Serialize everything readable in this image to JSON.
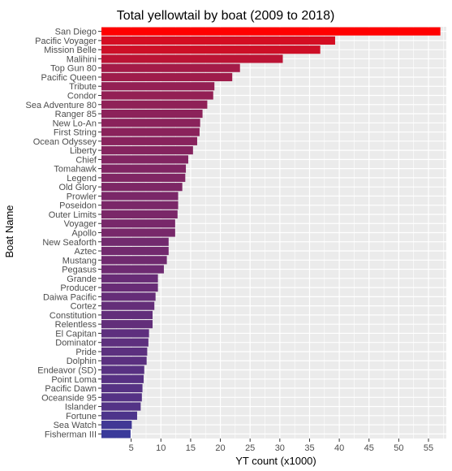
{
  "chart_data": {
    "type": "bar",
    "orientation": "horizontal",
    "title": "Total yellowtail by boat (2009 to 2018)",
    "xlabel": "YT count (x1000)",
    "ylabel": "Boat Name",
    "xlim": [
      0,
      58
    ],
    "xticks": [
      5,
      10,
      15,
      20,
      25,
      30,
      35,
      40,
      45,
      50,
      55
    ],
    "grid": true,
    "legend": "none",
    "colors": {
      "high": "#ff0000",
      "low": "#3a3a9a",
      "panel": "#ebebeb",
      "grid": "#ffffff"
    },
    "categories": [
      "San Diego",
      "Pacific Voyager",
      "Mission Belle",
      "Malihini",
      "Top Gun 80",
      "Pacific Queen",
      "Tribute",
      "Condor",
      "Sea Adventure 80",
      "Ranger 85",
      "New Lo-An",
      "First String",
      "Ocean Odyssey",
      "Liberty",
      "Chief",
      "Tomahawk",
      "Legend",
      "Old Glory",
      "Prowler",
      "Poseidon",
      "Outer Limits",
      "Voyager",
      "Apollo",
      "New Seaforth",
      "Aztec",
      "Mustang",
      "Pegasus",
      "Grande",
      "Producer",
      "Daiwa Pacific",
      "Cortez",
      "Constitution",
      "Relentless",
      "El Capitan",
      "Dominator",
      "Pride",
      "Dolphin",
      "Endeavor (SD)",
      "Point Loma",
      "Pacific Dawn",
      "Oceanside 95",
      "Islander",
      "Fortune",
      "Sea Watch",
      "Fisherman III"
    ],
    "values": [
      57.0,
      39.3,
      36.8,
      30.5,
      23.3,
      22.0,
      19.0,
      18.8,
      17.8,
      17.0,
      16.6,
      16.5,
      16.1,
      15.4,
      14.6,
      14.2,
      14.1,
      13.6,
      12.9,
      12.9,
      12.8,
      12.4,
      12.4,
      11.3,
      11.3,
      11.0,
      10.5,
      9.5,
      9.5,
      9.1,
      8.9,
      8.6,
      8.6,
      8.0,
      7.9,
      7.7,
      7.6,
      7.2,
      7.1,
      6.9,
      6.8,
      6.6,
      6.0,
      5.1,
      4.9
    ]
  }
}
